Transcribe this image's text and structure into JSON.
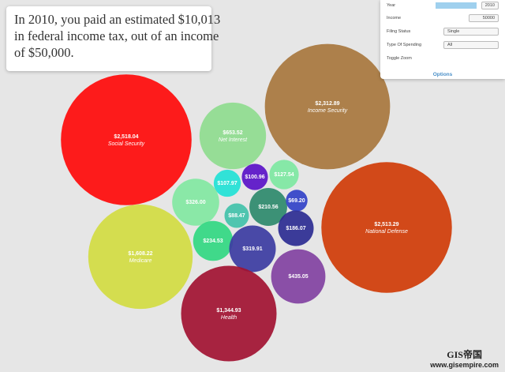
{
  "headline": {
    "lines": [
      "In 2010, you paid an estimated $10,013",
      "in federal income tax, out of an income",
      "of $50,000."
    ]
  },
  "options": {
    "year_label": "Year",
    "year": "2010",
    "income_label": "Income",
    "income": "50000",
    "filing_label": "Filing Status",
    "filing": "Single",
    "spending_label": "Type Of Spending",
    "spending": "All",
    "zoom_label": "Toggle Zoom",
    "tab": "Options"
  },
  "watermark": {
    "brand": "GIS帝国",
    "url": "www.gisempire.com"
  },
  "chart_data": {
    "type": "bubble",
    "categories": [
      "Social Security",
      "Net Interest",
      "Income Security",
      null,
      null,
      null,
      null,
      null,
      null,
      null,
      "National Defense",
      null,
      "Medicare",
      null,
      null,
      null,
      "Health"
    ],
    "values": [
      2518.04,
      653.52,
      2312.89,
      127.54,
      100.96,
      107.97,
      326.0,
      210.56,
      69.2,
      88.47,
      2513.29,
      186.07,
      1608.22,
      234.53,
      319.91,
      435.05,
      1344.93
    ],
    "value_labels": [
      "$2,518.04",
      "$653.52",
      "$2,312.89",
      "$127.54",
      "$100.96",
      "$107.97",
      "$326.00",
      "$210.56",
      "$69.20",
      "$88.47",
      "$2,513.29",
      "$186.07",
      "$1,608.22",
      "$234.53",
      "$319.91",
      "$435.05",
      "$1,344.93"
    ],
    "colors": [
      "#ff0a0a",
      "#8fdc8f",
      "#a8773e",
      "#7ee8a2",
      "#5a12c8",
      "#22e2d6",
      "#82e8a2",
      "#2e8a6c",
      "#3242c8",
      "#42c2aa",
      "#d03c08",
      "#2c2c92",
      "#d2dc42",
      "#32d882",
      "#3c3ca2",
      "#8242a2",
      "#a21232"
    ]
  }
}
